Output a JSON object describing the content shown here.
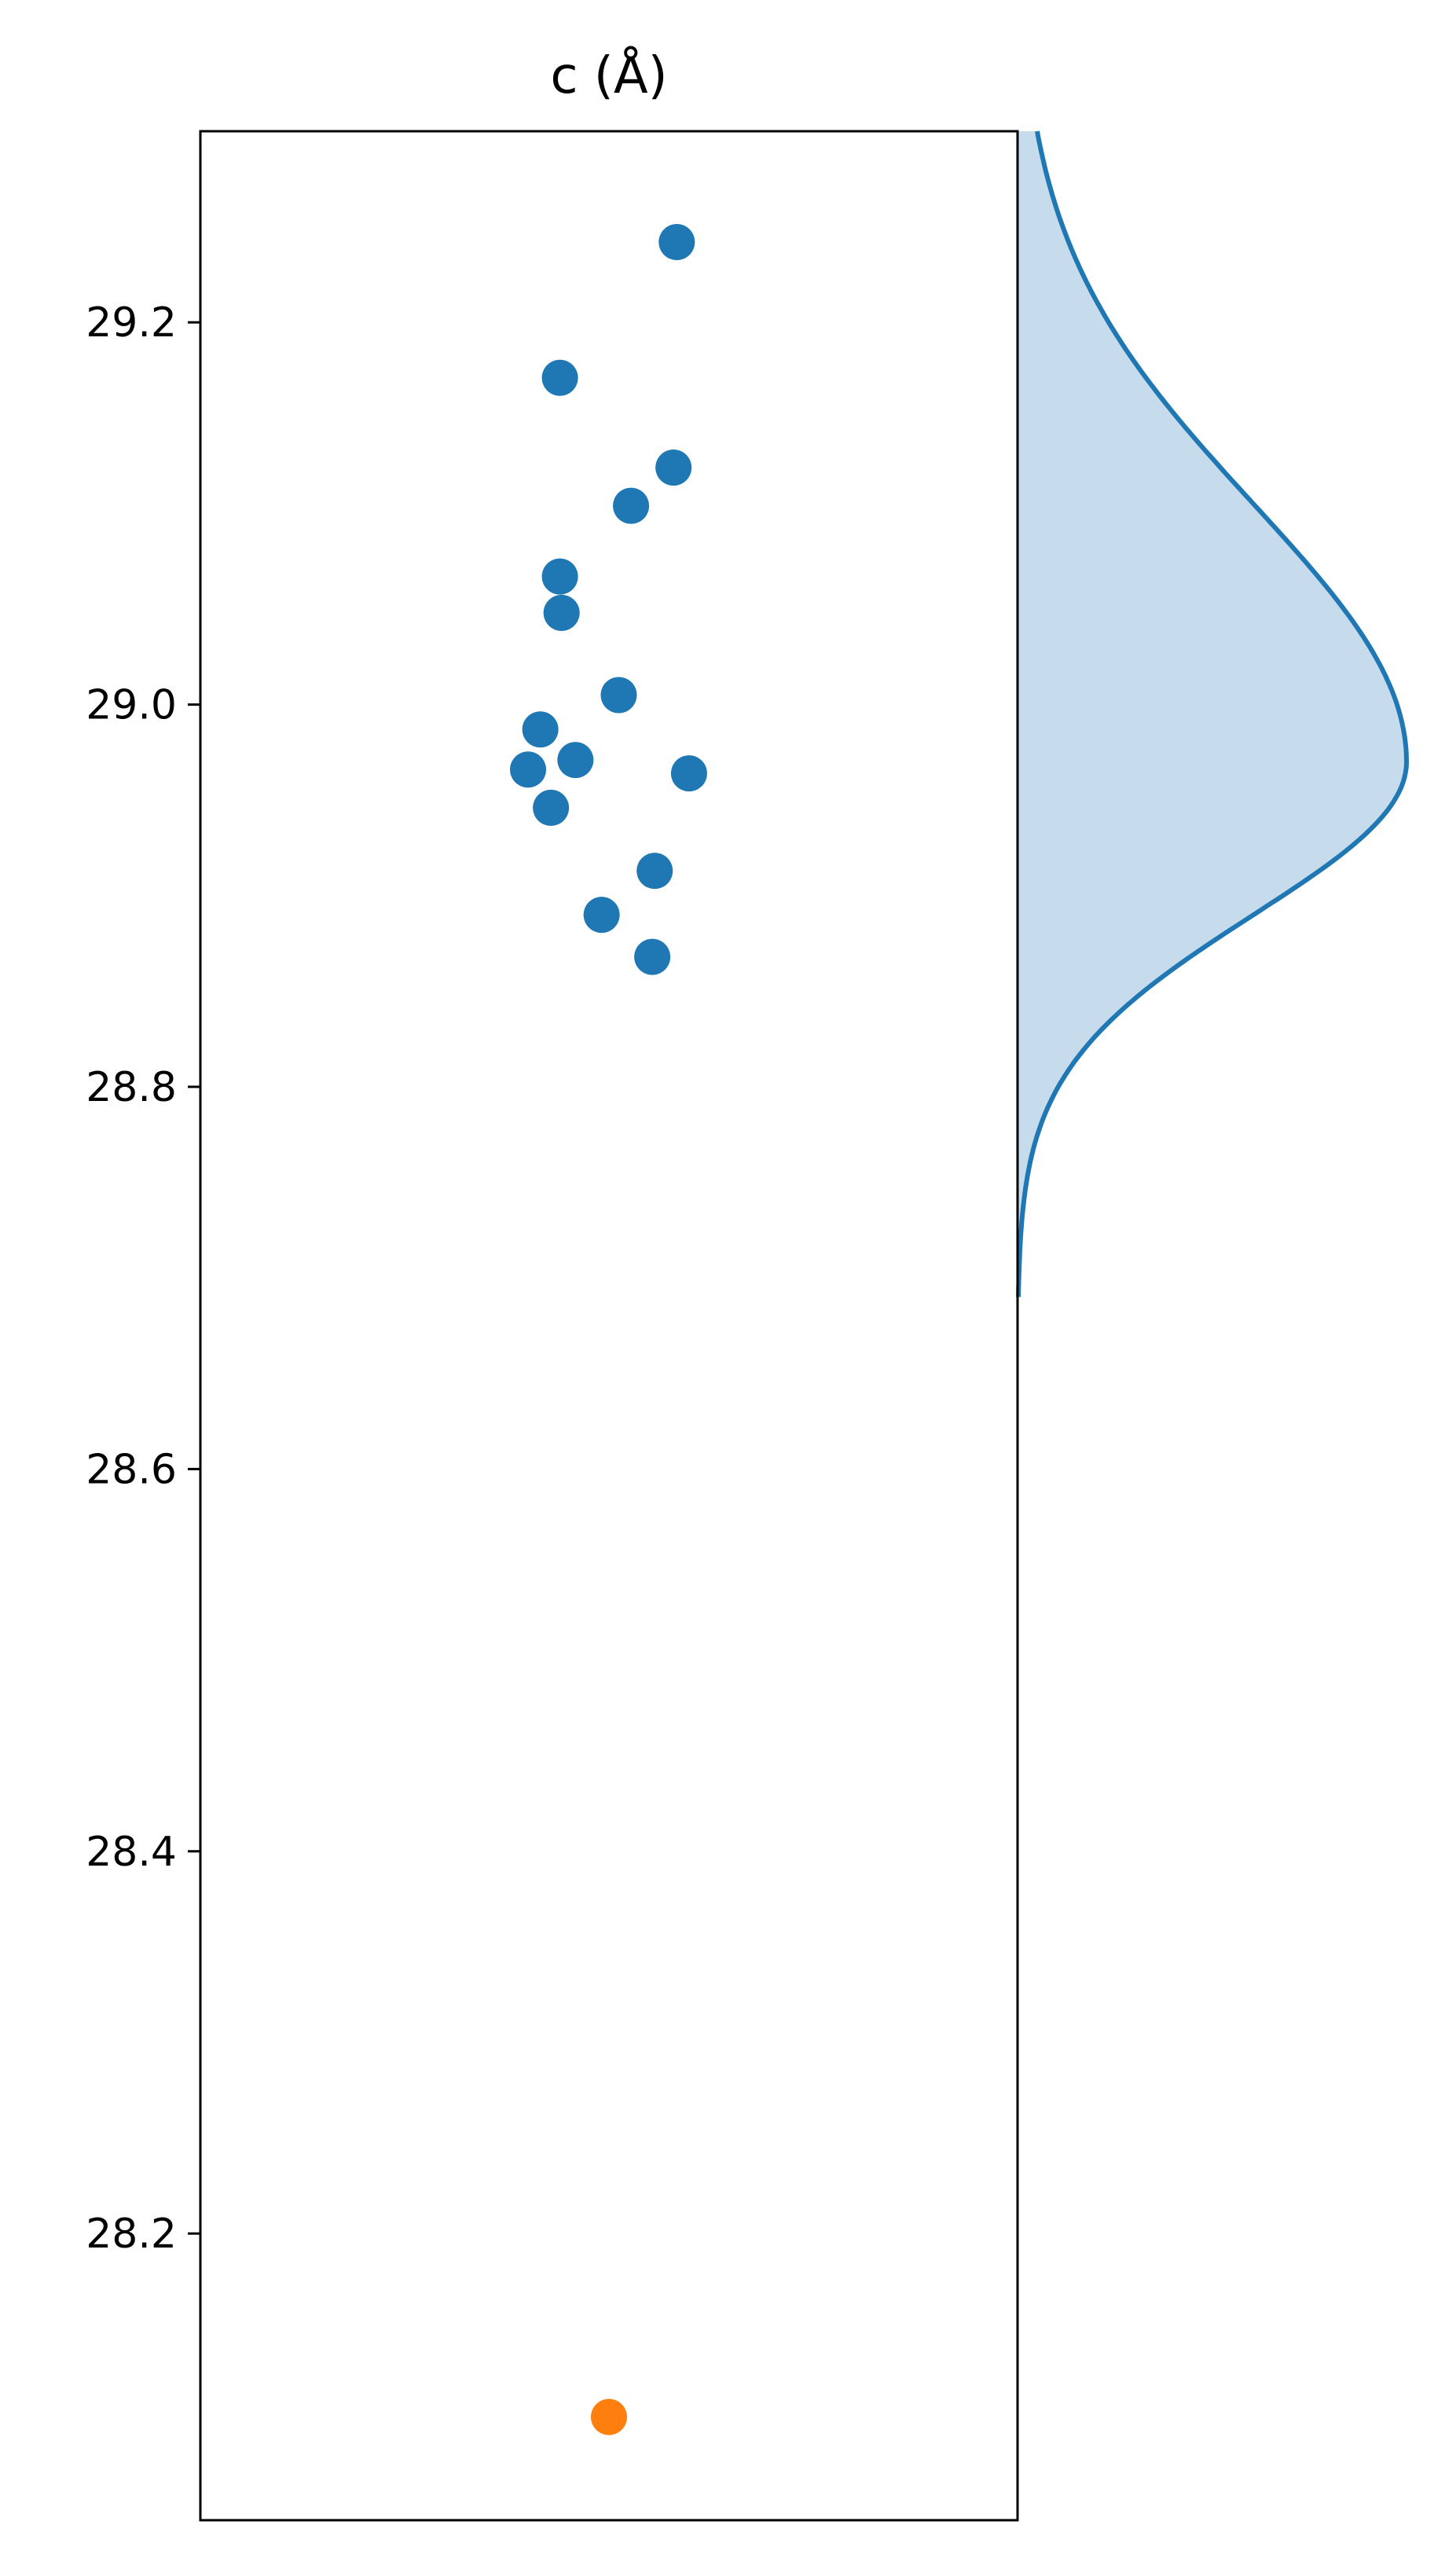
{
  "chart_data": {
    "type": "scatter",
    "title": "c (Å)",
    "ylim": [
      28.05,
      29.3
    ],
    "yticks": [
      28.2,
      28.4,
      28.6,
      28.8,
      29.0,
      29.2
    ],
    "grid": false,
    "legend": "none",
    "series": [
      {
        "color": "#1f77b4",
        "values": [
          29.242,
          29.171,
          29.124,
          29.104,
          29.067,
          29.048,
          29.005,
          28.987,
          28.971,
          28.966,
          28.964,
          28.946,
          28.913,
          28.89,
          28.868
        ]
      },
      {
        "color": "#ff7f0e",
        "values": [
          28.104
        ]
      }
    ],
    "density": {
      "type": "kde",
      "color": "#1f77b4",
      "fill": "#c6dcec",
      "y_range": [
        28.69,
        29.3
      ],
      "peak_y": 28.97
    }
  }
}
